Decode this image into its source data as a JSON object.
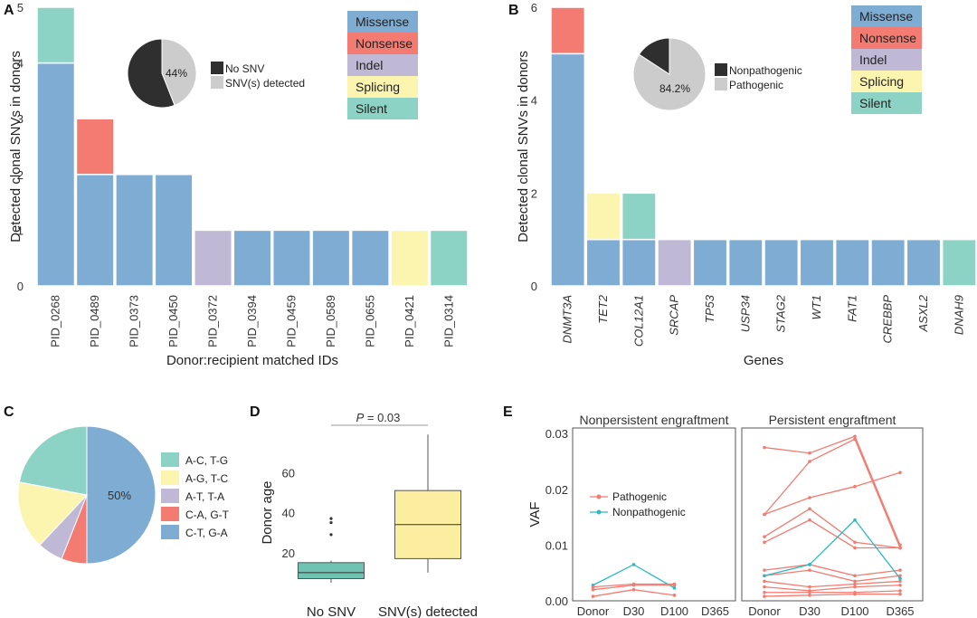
{
  "colors": {
    "Missense": "#7eacd2",
    "Nonsense": "#f37b71",
    "Indel": "#bfb9d6",
    "Splicing": "#fbf5b0",
    "Silent": "#8dd3c5",
    "pie_dark": "#2f2f2f",
    "pie_light": "#cccccc",
    "Pathogenic": "#f37b71",
    "Nonpathogenic": "#2eb8c3",
    "box_no_snv": "#6fc3b2",
    "box_snv": "#fbeea0"
  },
  "chart_data": [
    {
      "panel": "A",
      "type": "bar",
      "stacked": true,
      "xlabel": "Donor:recipient matched IDs",
      "ylabel": "Detected clonal SNVs in donors",
      "ylim": [
        0,
        5
      ],
      "yticks": [
        0,
        1,
        2,
        3,
        4,
        5
      ],
      "categories": [
        "PID_0268",
        "PID_0489",
        "PID_0373",
        "PID_0450",
        "PID_0372",
        "PID_0394",
        "PID_0459",
        "PID_0589",
        "PID_0655",
        "PID_0421",
        "PID_0314"
      ],
      "series": [
        {
          "name": "Missense",
          "values": [
            4,
            2,
            2,
            2,
            0,
            1,
            1,
            1,
            1,
            0,
            0
          ]
        },
        {
          "name": "Nonsense",
          "values": [
            0,
            1,
            0,
            0,
            0,
            0,
            0,
            0,
            0,
            0,
            0
          ]
        },
        {
          "name": "Indel",
          "values": [
            0,
            0,
            0,
            0,
            1,
            0,
            0,
            0,
            0,
            0,
            0
          ]
        },
        {
          "name": "Splicing",
          "values": [
            0,
            0,
            0,
            0,
            0,
            0,
            0,
            0,
            0,
            1,
            0
          ]
        },
        {
          "name": "Silent",
          "values": [
            1,
            0,
            0,
            0,
            0,
            0,
            0,
            0,
            0,
            0,
            1
          ]
        }
      ],
      "legend": [
        "Missense",
        "Nonsense",
        "Indel",
        "Splicing",
        "Silent"
      ],
      "inset_pie": {
        "slices": [
          {
            "label": "No SNV",
            "value": 56
          },
          {
            "label": "SNV(s) detected",
            "value": 44
          }
        ],
        "label": "44%"
      }
    },
    {
      "panel": "B",
      "type": "bar",
      "stacked": true,
      "xlabel": "Genes",
      "ylabel": "Detected clonal SNVs in donors",
      "ylim": [
        0,
        6
      ],
      "yticks": [
        0,
        2,
        4,
        6
      ],
      "categories": [
        "DNMT3A",
        "TET2",
        "COL12A1",
        "SRCAP",
        "TP53",
        "USP34",
        "STAG2",
        "WT1",
        "FAT1",
        "CREBBP",
        "ASXL2",
        "DNAH9"
      ],
      "series": [
        {
          "name": "Missense",
          "values": [
            5,
            1,
            1,
            0,
            1,
            1,
            1,
            1,
            1,
            1,
            1,
            0
          ]
        },
        {
          "name": "Nonsense",
          "values": [
            1,
            0,
            0,
            0,
            0,
            0,
            0,
            0,
            0,
            0,
            0,
            0
          ]
        },
        {
          "name": "Indel",
          "values": [
            0,
            0,
            0,
            1,
            0,
            0,
            0,
            0,
            0,
            0,
            0,
            0
          ]
        },
        {
          "name": "Splicing",
          "values": [
            0,
            1,
            0,
            0,
            0,
            0,
            0,
            0,
            0,
            0,
            0,
            0
          ]
        },
        {
          "name": "Silent",
          "values": [
            0,
            0,
            1,
            0,
            0,
            0,
            0,
            0,
            0,
            0,
            0,
            1
          ]
        }
      ],
      "legend": [
        "Missense",
        "Nonsense",
        "Indel",
        "Splicing",
        "Silent"
      ],
      "inset_pie": {
        "slices": [
          {
            "label": "Nonpathogenic",
            "value": 15.8
          },
          {
            "label": "Pathogenic",
            "value": 84.2
          }
        ],
        "label": "84.2%"
      }
    },
    {
      "panel": "C",
      "type": "pie",
      "slices": [
        {
          "label": "C-T, G-A",
          "value": 50
        },
        {
          "label": "C-A, G-T",
          "value": 6
        },
        {
          "label": "A-T, T-A",
          "value": 6
        },
        {
          "label": "A-G, T-C",
          "value": 16
        },
        {
          "label": "A-C, T-G",
          "value": 22
        }
      ],
      "slice_colors": [
        "#7eacd2",
        "#f37b71",
        "#bfb9d6",
        "#fbf5b0",
        "#8dd3c5"
      ],
      "legend": [
        "A-C, T-G",
        "A-G, T-C",
        "A-T, T-A",
        "C-A, G-T",
        "C-T, G-A"
      ],
      "legend_colors": [
        "#8dd3c5",
        "#fbf5b0",
        "#bfb9d6",
        "#f37b71",
        "#7eacd2"
      ],
      "label": "50%"
    },
    {
      "panel": "D",
      "type": "box",
      "ylabel": "Donor age",
      "ylim": [
        0,
        80
      ],
      "yticks": [
        20,
        40,
        60
      ],
      "pvalue_label": "P",
      "pvalue_text": " = 0.03",
      "groups": [
        {
          "name": "No SNV",
          "min": 5,
          "q1": 7,
          "median": 10,
          "q3": 15,
          "max": 16,
          "outliers": [
            29,
            35,
            37
          ]
        },
        {
          "name": "SNV(s) detected",
          "min": 10,
          "q1": 17,
          "median": 34,
          "q3": 51,
          "max": 79,
          "outliers": []
        }
      ]
    },
    {
      "panel": "E",
      "type": "line",
      "ylabel": "VAF",
      "ylim": [
        0,
        0.031
      ],
      "yticks": [
        0,
        0.01,
        0.02,
        0.03
      ],
      "ytick_labels": [
        "0.00",
        "0.01",
        "0.02",
        "0.03"
      ],
      "x": [
        "Donor",
        "D30",
        "D100",
        "D365"
      ],
      "legend": [
        "Pathogenic",
        "Nonpathogenic"
      ],
      "facets": [
        {
          "title": "Nonpersistent engraftment",
          "series": [
            {
              "type": "Nonpathogenic",
              "values": [
                0.0028,
                0.0065,
                0.0023,
                null
              ]
            },
            {
              "type": "Pathogenic",
              "values": [
                0.0025,
                0.003,
                0.003,
                null
              ]
            },
            {
              "type": "Pathogenic",
              "values": [
                0.002,
                0.0028,
                0.0028,
                null
              ]
            },
            {
              "type": "Pathogenic",
              "values": [
                0.0008,
                0.002,
                0.001,
                null
              ]
            }
          ]
        },
        {
          "title": "Persistent engraftment",
          "series": [
            {
              "type": "Pathogenic",
              "values": [
                0.0275,
                0.0265,
                0.0295,
                0.01
              ]
            },
            {
              "type": "Pathogenic",
              "values": [
                0.0155,
                0.025,
                0.029,
                0.0095
              ]
            },
            {
              "type": "Pathogenic",
              "values": [
                0.0155,
                0.0185,
                0.0205,
                0.023
              ]
            },
            {
              "type": "Pathogenic",
              "values": [
                0.0115,
                0.0165,
                0.0105,
                0.0095
              ]
            },
            {
              "type": "Pathogenic",
              "values": [
                0.0105,
                0.0145,
                0.0095,
                0.0095
              ]
            },
            {
              "type": "Pathogenic",
              "values": [
                0.0055,
                0.0065,
                0.0045,
                0.0055
              ]
            },
            {
              "type": "Pathogenic",
              "values": [
                0.0045,
                0.0055,
                0.0035,
                0.0045
              ]
            },
            {
              "type": "Pathogenic",
              "values": [
                0.0035,
                0.0025,
                0.003,
                0.0035
              ]
            },
            {
              "type": "Pathogenic",
              "values": [
                0.0025,
                0.0018,
                0.0025,
                0.0028
              ]
            },
            {
              "type": "Pathogenic",
              "values": [
                0.0015,
                0.0015,
                0.0015,
                0.0018
              ]
            },
            {
              "type": "Pathogenic",
              "values": [
                0.0008,
                0.001,
                0.0012,
                0.0012
              ]
            },
            {
              "type": "Nonpathogenic",
              "values": [
                0.0045,
                0.0065,
                0.0145,
                0.004
              ]
            }
          ]
        }
      ]
    }
  ]
}
